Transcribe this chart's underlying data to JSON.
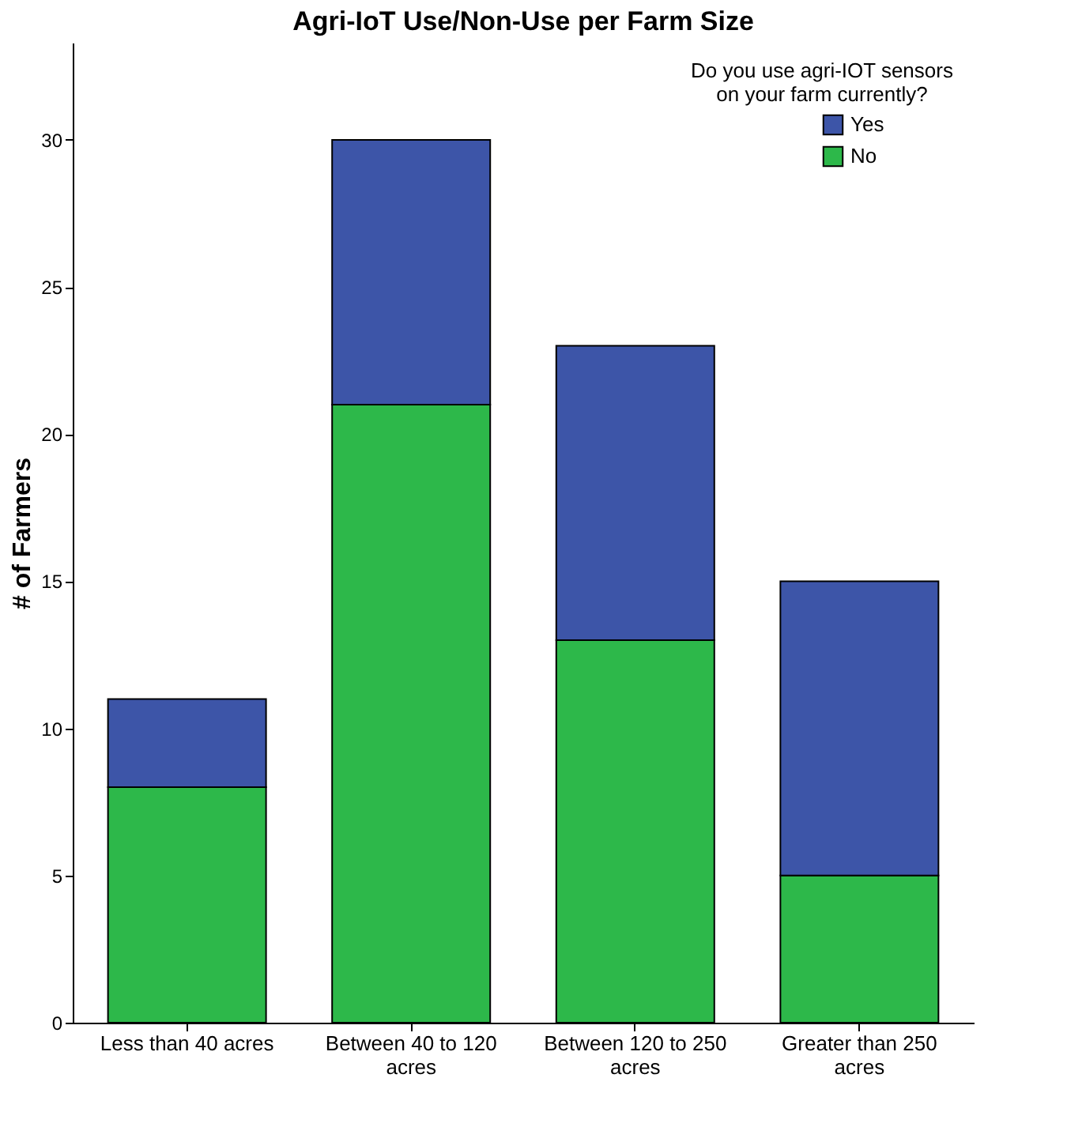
{
  "chart_data": {
    "type": "bar",
    "title": "Agri-IoT Use/Non-Use per Farm Size",
    "ylabel": "# of Farmers",
    "legend_title": "Do you use agri-IOT sensors on your farm currently?",
    "categories": [
      "Less than 40 acres",
      "Between 40 to 120 acres",
      "Between 120 to 250 acres",
      "Greater than 250 acres"
    ],
    "stacked": true,
    "series": [
      {
        "name": "No",
        "color": "#2db84a",
        "values": [
          8,
          21,
          13,
          5
        ]
      },
      {
        "name": "Yes",
        "color": "#3d55a8",
        "values": [
          3,
          9,
          10,
          10
        ]
      }
    ],
    "ylim": [
      0,
      33.3
    ],
    "yticks": [
      0,
      5,
      10,
      15,
      20,
      25,
      30
    ],
    "grid": false,
    "legend": "top right"
  }
}
